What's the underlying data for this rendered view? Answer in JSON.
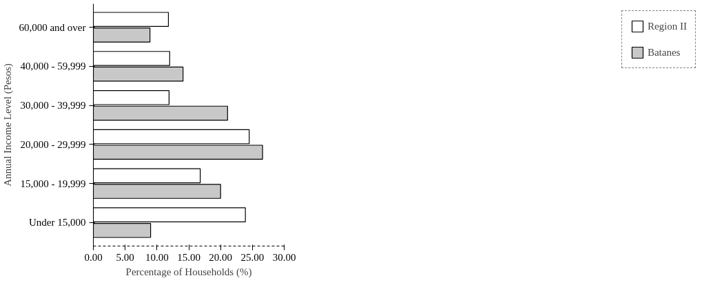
{
  "chart_data": {
    "type": "bar",
    "orientation": "horizontal",
    "xlabel": "Percentage of Households (%)",
    "ylabel": "Annual Income Level (Pesos)",
    "categories": [
      "60,000 and over",
      "40,000 - 59,999",
      "30,000 - 39,999",
      "20,000 - 29,999",
      "15,000 - 19,999",
      "Under 15,000"
    ],
    "series": [
      {
        "name": "Region II",
        "color": "#ffffff",
        "values": [
          11.8,
          12.0,
          11.9,
          24.5,
          16.8,
          23.9
        ]
      },
      {
        "name": "Batanes",
        "color": "#c8c8c8",
        "values": [
          8.9,
          14.1,
          21.1,
          26.6,
          20.0,
          9.0
        ]
      }
    ],
    "xlim": [
      0,
      30
    ],
    "xticks": [
      {
        "value": 0,
        "label": "0.00"
      },
      {
        "value": 5,
        "label": "5.00"
      },
      {
        "value": 10,
        "label": "10.00"
      },
      {
        "value": 15,
        "label": "15.00"
      },
      {
        "value": 20,
        "label": "20.00"
      },
      {
        "value": 25,
        "label": "25.00"
      },
      {
        "value": 30,
        "label": "30.00"
      }
    ],
    "grid": false,
    "legend": "right"
  }
}
